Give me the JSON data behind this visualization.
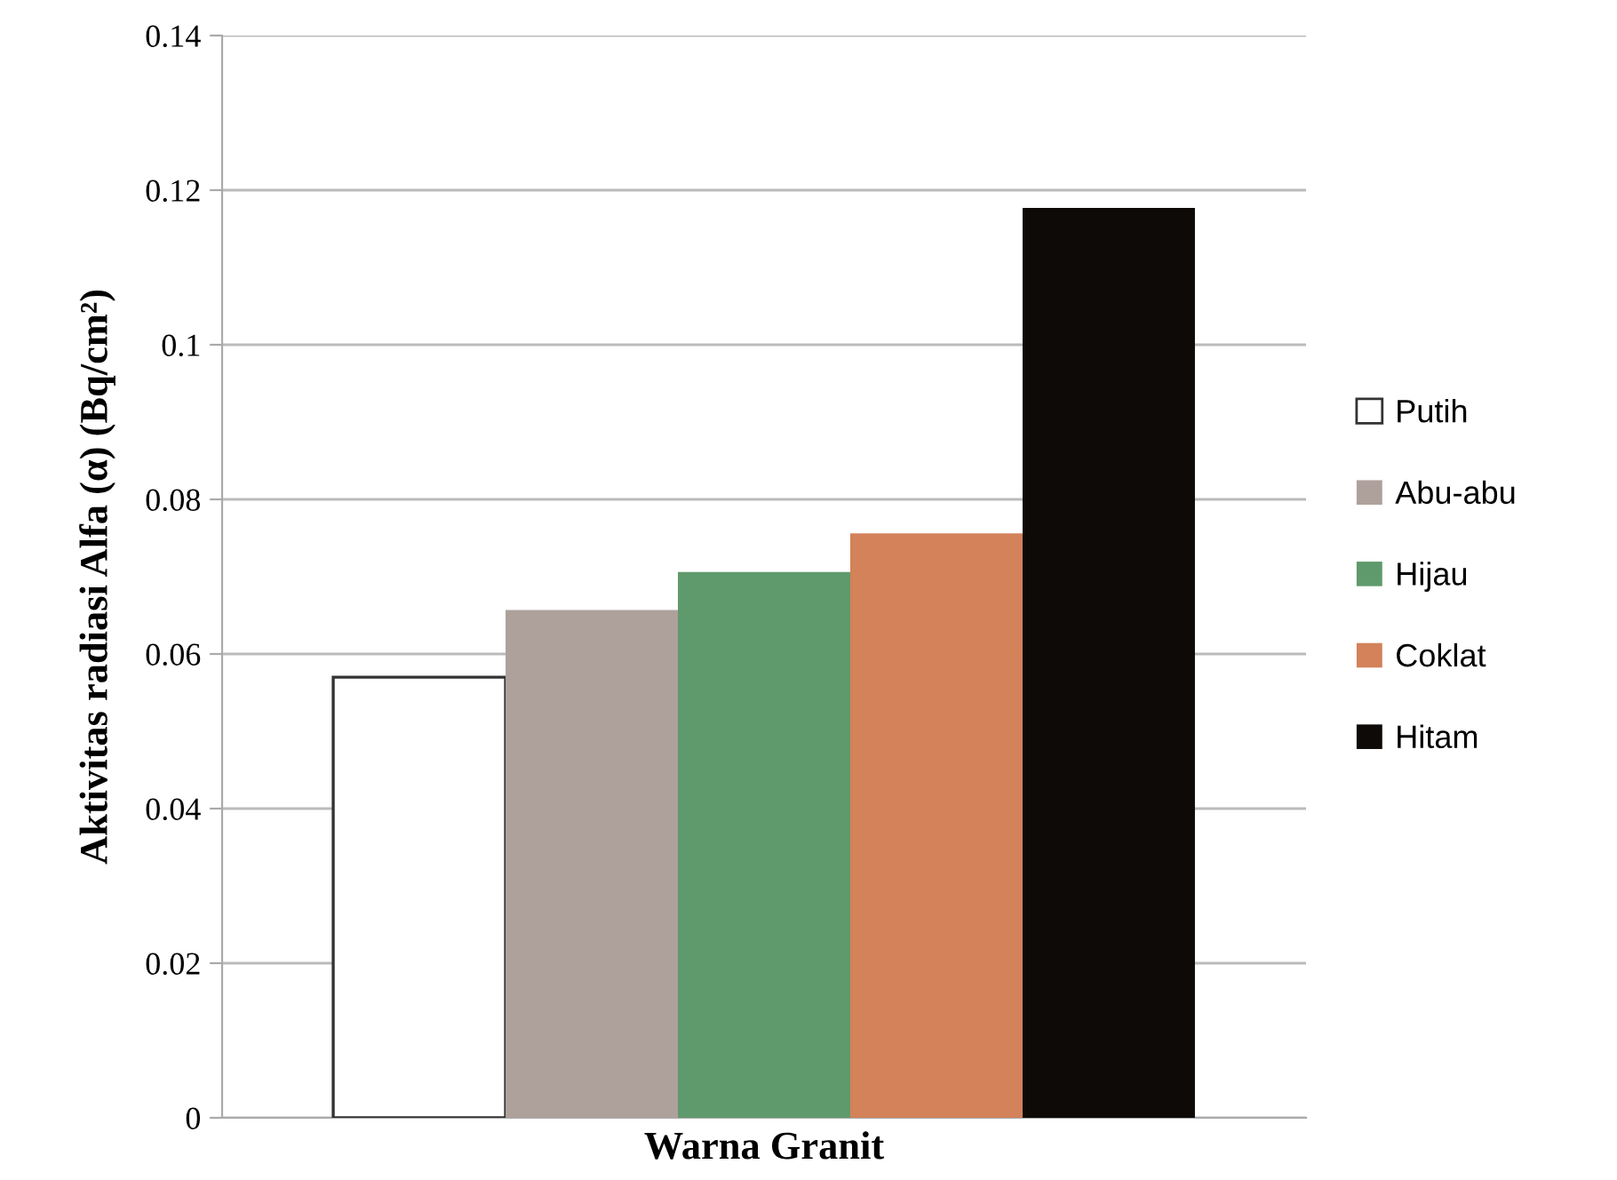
{
  "chart_data": {
    "type": "bar",
    "xlabel": "Warna Granit",
    "ylabel": "Aktivitas radiasi Alfa (α) (Bq/cm²)",
    "categories": [
      null
    ],
    "series": [
      {
        "name": "Putih",
        "color": "#ffffff",
        "values": [
          0.057
        ]
      },
      {
        "name": "Abu-abu",
        "color": "#aea19c",
        "values": [
          0.0657
        ]
      },
      {
        "name": "Hijau",
        "color": "#5f9a6c",
        "values": [
          0.0706
        ]
      },
      {
        "name": "Coklat",
        "color": "#d3825a",
        "values": [
          0.0756
        ]
      },
      {
        "name": "Hitam",
        "color": "#0d0a08",
        "values": [
          0.1177
        ]
      }
    ],
    "ylim": [
      0,
      0.14
    ],
    "yticks": [
      0,
      0.02,
      0.04,
      0.06,
      0.08,
      0.1,
      0.12,
      0.14
    ],
    "grid": "y",
    "legend": "right"
  }
}
